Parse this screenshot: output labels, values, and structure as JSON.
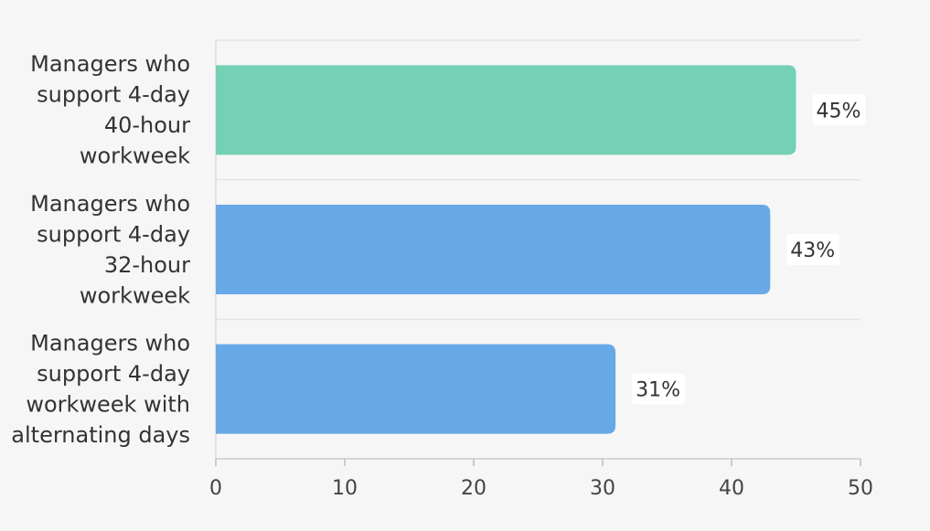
{
  "chart_data": {
    "type": "bar",
    "orientation": "horizontal",
    "categories": [
      [
        "Managers who",
        "support 4-day",
        "40-hour",
        "workweek"
      ],
      [
        "Managers who",
        "support 4-day",
        "32-hour",
        "workweek"
      ],
      [
        "Managers who",
        "support 4-day",
        "workweek with",
        "alternating days"
      ]
    ],
    "values": [
      45,
      43,
      31
    ],
    "value_labels": [
      "45%",
      "43%",
      "31%"
    ],
    "bar_colors": [
      "#74d1b5",
      "#67a9e6",
      "#67a9e6"
    ],
    "xlim": [
      0,
      50
    ],
    "xticks": [
      0,
      10,
      20,
      30,
      40,
      50
    ],
    "xtick_labels": [
      "0",
      "10",
      "20",
      "30",
      "40",
      "50"
    ],
    "title": "",
    "xlabel": "",
    "ylabel": "",
    "grid": "horizontal separators",
    "legend": "none"
  }
}
